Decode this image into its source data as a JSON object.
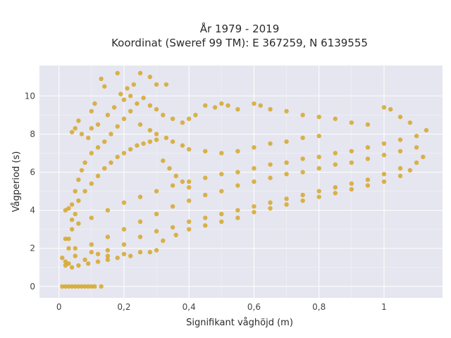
{
  "chart_data": {
    "type": "scatter",
    "title_line1": "År 1979 - 2019",
    "title_line2": "Koordinat (Sweref 99 TM): E 367259, N 6139555",
    "xlabel": "Signifikant våghöjd (m)",
    "ylabel": "Vågperiod (s)",
    "xlim": [
      -0.06,
      1.18
    ],
    "ylim": [
      -0.6,
      11.6
    ],
    "x_ticks": [
      0,
      0.2,
      0.4,
      0.6,
      0.8,
      1
    ],
    "x_tick_labels": [
      "0",
      "0,2",
      "0,4",
      "0,6",
      "0,8",
      "1"
    ],
    "y_ticks": [
      0,
      2,
      4,
      6,
      8,
      10
    ],
    "y_tick_labels": [
      "0",
      "2",
      "4",
      "6",
      "8",
      "10"
    ],
    "grid": true,
    "colors": {
      "marker": "#d4a21e",
      "plot_bg": "#e5e6ef",
      "grid": "#ffffff"
    },
    "series": [
      {
        "points": [
          [
            0.01,
            1.5
          ],
          [
            0.02,
            1.3
          ],
          [
            0.03,
            1.2
          ],
          [
            0.05,
            1.6
          ],
          [
            0.08,
            1.4
          ],
          [
            0.12,
            1.7
          ],
          [
            0.15,
            1.9
          ],
          [
            0.2,
            2.2
          ],
          [
            0.25,
            2.6
          ],
          [
            0.3,
            2.9
          ],
          [
            0.35,
            3.1
          ],
          [
            0.4,
            3.4
          ],
          [
            0.45,
            3.6
          ],
          [
            0.5,
            3.8
          ],
          [
            0.55,
            4.0
          ],
          [
            0.6,
            4.2
          ],
          [
            0.65,
            4.4
          ],
          [
            0.7,
            4.6
          ],
          [
            0.75,
            4.8
          ],
          [
            0.8,
            5.0
          ],
          [
            0.85,
            5.2
          ],
          [
            0.9,
            5.4
          ],
          [
            0.95,
            5.6
          ],
          [
            1.0,
            5.9
          ],
          [
            1.05,
            6.2
          ],
          [
            1.1,
            6.5
          ],
          [
            1.12,
            6.8
          ],
          [
            0.02,
            2.5
          ],
          [
            0.04,
            3.0
          ],
          [
            0.06,
            3.3
          ],
          [
            0.1,
            3.6
          ],
          [
            0.15,
            4.0
          ],
          [
            0.2,
            4.4
          ],
          [
            0.25,
            4.7
          ],
          [
            0.3,
            5.0
          ],
          [
            0.35,
            5.3
          ],
          [
            0.4,
            5.5
          ],
          [
            0.45,
            5.7
          ],
          [
            0.5,
            5.9
          ],
          [
            0.55,
            6.0
          ],
          [
            0.6,
            6.2
          ],
          [
            0.65,
            6.4
          ],
          [
            0.7,
            6.5
          ],
          [
            0.75,
            6.7
          ],
          [
            0.8,
            6.8
          ],
          [
            0.85,
            7.0
          ],
          [
            0.9,
            7.1
          ],
          [
            0.95,
            7.3
          ],
          [
            1.0,
            7.5
          ],
          [
            1.05,
            7.7
          ],
          [
            1.1,
            7.9
          ],
          [
            1.13,
            8.2
          ],
          [
            0.05,
            2.0
          ],
          [
            0.1,
            2.2
          ],
          [
            0.15,
            2.6
          ],
          [
            0.2,
            3.0
          ],
          [
            0.25,
            3.4
          ],
          [
            0.3,
            3.8
          ],
          [
            0.35,
            4.2
          ],
          [
            0.4,
            4.5
          ],
          [
            0.45,
            4.8
          ],
          [
            0.5,
            5.0
          ],
          [
            0.55,
            5.3
          ],
          [
            0.6,
            5.5
          ],
          [
            0.65,
            5.7
          ],
          [
            0.7,
            5.9
          ],
          [
            0.75,
            6.0
          ],
          [
            0.8,
            6.2
          ],
          [
            0.85,
            6.4
          ],
          [
            0.9,
            6.5
          ],
          [
            0.95,
            6.7
          ],
          [
            1.0,
            6.9
          ],
          [
            1.05,
            7.1
          ],
          [
            1.1,
            7.3
          ],
          [
            0.04,
            4.3
          ],
          [
            0.03,
            4.1
          ],
          [
            0.02,
            4.0
          ],
          [
            0.05,
            5.0
          ],
          [
            0.06,
            5.6
          ],
          [
            0.07,
            6.1
          ],
          [
            0.08,
            6.5
          ],
          [
            0.1,
            7.0
          ],
          [
            0.12,
            7.3
          ],
          [
            0.14,
            7.6
          ],
          [
            0.16,
            8.0
          ],
          [
            0.18,
            8.4
          ],
          [
            0.2,
            8.8
          ],
          [
            0.22,
            9.2
          ],
          [
            0.24,
            9.6
          ],
          [
            0.19,
            10.1
          ],
          [
            0.21,
            10.4
          ],
          [
            0.23,
            10.6
          ],
          [
            0.18,
            11.2
          ],
          [
            0.25,
            11.2
          ],
          [
            0.14,
            10.5
          ],
          [
            0.13,
            10.9
          ],
          [
            0.28,
            11.0
          ],
          [
            0.3,
            10.6
          ],
          [
            0.33,
            10.6
          ],
          [
            0.26,
            9.9
          ],
          [
            0.28,
            9.5
          ],
          [
            0.3,
            9.3
          ],
          [
            0.32,
            9.0
          ],
          [
            0.35,
            8.8
          ],
          [
            0.38,
            8.6
          ],
          [
            0.4,
            8.8
          ],
          [
            0.42,
            9.0
          ],
          [
            0.45,
            9.5
          ],
          [
            0.48,
            9.4
          ],
          [
            0.5,
            9.6
          ],
          [
            0.52,
            9.5
          ],
          [
            0.55,
            9.3
          ],
          [
            0.6,
            9.6
          ],
          [
            0.62,
            9.5
          ],
          [
            0.65,
            9.3
          ],
          [
            0.7,
            9.2
          ],
          [
            0.75,
            9.0
          ],
          [
            0.8,
            8.9
          ],
          [
            0.85,
            8.8
          ],
          [
            0.9,
            8.6
          ],
          [
            0.95,
            8.5
          ],
          [
            1.0,
            9.4
          ],
          [
            1.02,
            9.3
          ],
          [
            1.05,
            8.9
          ],
          [
            1.08,
            8.6
          ],
          [
            0.06,
            8.7
          ],
          [
            0.05,
            8.3
          ],
          [
            0.04,
            8.1
          ],
          [
            0.07,
            8.0
          ],
          [
            0.09,
            7.8
          ],
          [
            0.1,
            8.3
          ],
          [
            0.12,
            8.5
          ],
          [
            0.15,
            9.0
          ],
          [
            0.17,
            9.4
          ],
          [
            0.2,
            9.8
          ],
          [
            0.22,
            10.0
          ],
          [
            0.1,
            9.2
          ],
          [
            0.11,
            9.6
          ],
          [
            0.25,
            8.5
          ],
          [
            0.28,
            8.2
          ],
          [
            0.3,
            8.0
          ],
          [
            0.33,
            7.8
          ],
          [
            0.35,
            7.6
          ],
          [
            0.38,
            7.4
          ],
          [
            0.4,
            7.2
          ],
          [
            0.45,
            7.1
          ],
          [
            0.5,
            7.0
          ],
          [
            0.55,
            7.1
          ],
          [
            0.6,
            7.3
          ],
          [
            0.65,
            7.5
          ],
          [
            0.7,
            7.6
          ],
          [
            0.75,
            7.8
          ],
          [
            0.8,
            7.9
          ],
          [
            0.03,
            2.0
          ],
          [
            0.03,
            2.5
          ],
          [
            0.04,
            3.5
          ],
          [
            0.05,
            3.8
          ],
          [
            0.06,
            4.5
          ],
          [
            0.08,
            5.0
          ],
          [
            0.1,
            5.4
          ],
          [
            0.12,
            5.8
          ],
          [
            0.14,
            6.2
          ],
          [
            0.16,
            6.5
          ],
          [
            0.18,
            6.8
          ],
          [
            0.2,
            7.0
          ],
          [
            0.22,
            7.2
          ],
          [
            0.24,
            7.4
          ],
          [
            0.26,
            7.5
          ],
          [
            0.28,
            7.6
          ],
          [
            0.3,
            7.7
          ],
          [
            0.32,
            6.6
          ],
          [
            0.34,
            6.2
          ],
          [
            0.36,
            5.8
          ],
          [
            0.38,
            5.5
          ],
          [
            0.4,
            5.2
          ],
          [
            0.1,
            1.8
          ],
          [
            0.15,
            1.6
          ],
          [
            0.2,
            1.7
          ],
          [
            0.25,
            1.8
          ],
          [
            0.28,
            1.8
          ],
          [
            0.3,
            1.9
          ],
          [
            0.32,
            2.4
          ],
          [
            0.36,
            2.7
          ],
          [
            0.4,
            3.0
          ],
          [
            0.45,
            3.2
          ],
          [
            0.5,
            3.4
          ],
          [
            0.55,
            3.6
          ],
          [
            0.6,
            3.9
          ],
          [
            0.65,
            4.1
          ],
          [
            0.7,
            4.3
          ],
          [
            0.75,
            4.5
          ],
          [
            0.8,
            4.7
          ],
          [
            0.85,
            4.9
          ],
          [
            0.9,
            5.1
          ],
          [
            0.95,
            5.3
          ],
          [
            1.0,
            5.5
          ],
          [
            1.05,
            5.8
          ],
          [
            1.08,
            6.1
          ],
          [
            0.01,
            0.0
          ],
          [
            0.02,
            0.0
          ],
          [
            0.03,
            0.0
          ],
          [
            0.04,
            0.0
          ],
          [
            0.05,
            0.0
          ],
          [
            0.06,
            0.0
          ],
          [
            0.07,
            0.0
          ],
          [
            0.08,
            0.0
          ],
          [
            0.09,
            0.0
          ],
          [
            0.1,
            0.0
          ],
          [
            0.11,
            0.0
          ],
          [
            0.13,
            0.0
          ],
          [
            0.02,
            1.1
          ],
          [
            0.04,
            1.0
          ],
          [
            0.06,
            1.1
          ],
          [
            0.09,
            1.2
          ],
          [
            0.12,
            1.3
          ],
          [
            0.15,
            1.4
          ],
          [
            0.18,
            1.5
          ],
          [
            0.22,
            1.6
          ]
        ]
      }
    ]
  }
}
